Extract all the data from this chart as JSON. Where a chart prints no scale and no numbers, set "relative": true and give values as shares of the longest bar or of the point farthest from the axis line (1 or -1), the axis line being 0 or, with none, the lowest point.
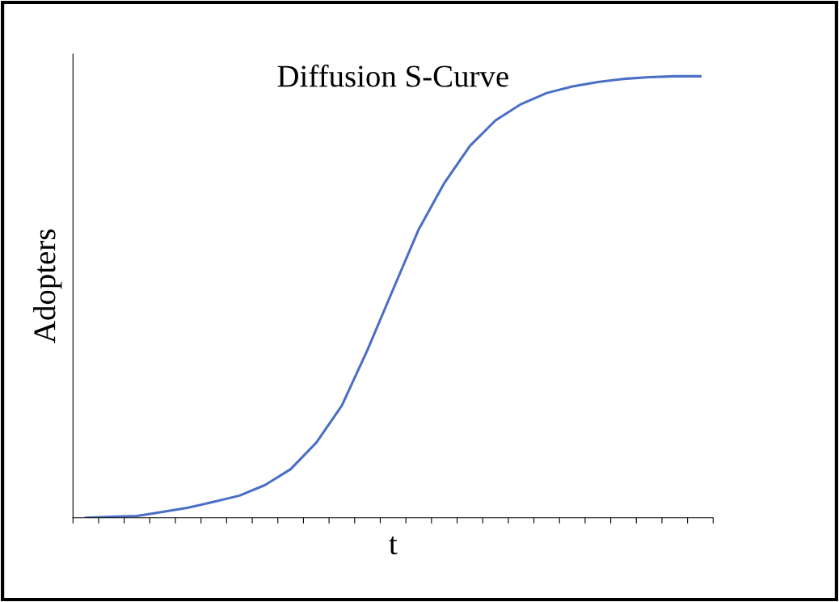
{
  "chart_data": {
    "type": "line",
    "title": "Diffusion S-Curve",
    "xlabel": "t",
    "ylabel": "Adopters",
    "relative": true,
    "categories": [
      null,
      null,
      null,
      null,
      null,
      null,
      null,
      null,
      null,
      null,
      null,
      null,
      null,
      null,
      null,
      null,
      null,
      null,
      null,
      null,
      null,
      null,
      null,
      null,
      null
    ],
    "series": [
      {
        "color": "#4a6fc4",
        "values": [
          0,
          0.002,
          0.004,
          0.013,
          0.023,
          0.036,
          0.05,
          0.074,
          0.11,
          0.17,
          0.254,
          0.38,
          0.517,
          0.653,
          0.758,
          0.842,
          0.9,
          0.937,
          0.962,
          0.977,
          0.987,
          0.994,
          0.998,
          1,
          1
        ]
      }
    ],
    "grid": false,
    "legend": false,
    "tick_labels": false,
    "marker": "none",
    "line_style": "solid"
  }
}
